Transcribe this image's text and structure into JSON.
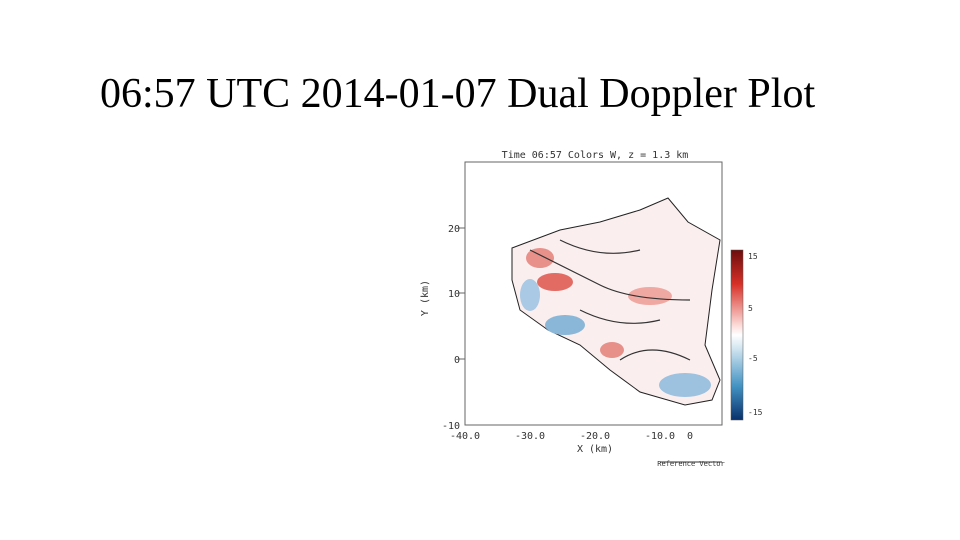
{
  "title": "06:57 UTC 2014-01-07 Dual Doppler Plot",
  "figure": {
    "title": "Time 06:57 Colors W, z = 1.3 km",
    "y_axis": {
      "label": "Y (km)",
      "ticks": [
        "20",
        "10",
        "0",
        "-10"
      ]
    },
    "x_axis": {
      "label": "X (km)",
      "ticks": [
        "-40.0",
        "-30.0",
        "-20.0",
        "-10.0",
        "0"
      ]
    },
    "colorbar": {
      "ticks": [
        "15",
        "5",
        "-5",
        "-15"
      ]
    },
    "reference_vector": "Reference Vector"
  }
}
